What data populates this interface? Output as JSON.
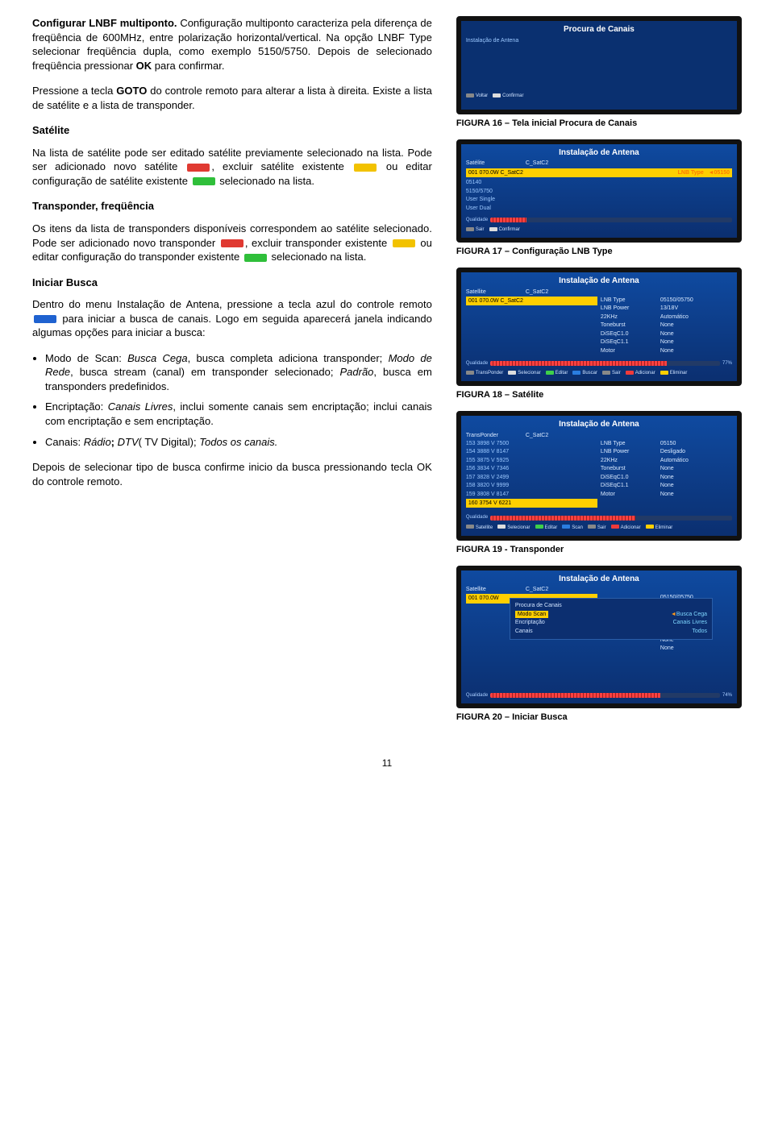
{
  "chips": {
    "red": "#e03a32",
    "yellow": "#f2c200",
    "green": "#2fbf3a",
    "blue": "#1f62d0"
  },
  "left": {
    "s1": {
      "h": "Configurar LNBF multiponto.",
      "p1a": " Configuração multiponto caracteriza pela diferença de freqüência de 600MHz, entre polarização horizontal/vertical. Na opção LNBF Type selecionar freqüência dupla, como exemplo 5150/5750. Depois de selecionado freqüência pressionar ",
      "okword": "OK",
      "p1b": " para confirmar.",
      "p2a": "Pressione a tecla ",
      "goto": "GOTO",
      "p2b": " do controle remoto para alterar a lista à direita. Existe a lista de satélite e a lista de transponder."
    },
    "s2": {
      "h": "Satélite",
      "p_a": "Na lista de satélite pode ser editado satélite previamente selecionado na lista. Pode ser adicionado novo satélite ",
      "p_b": ", excluir satélite existente ",
      "p_c": " ou editar configuração de satélite existente ",
      "p_d": " selecionado na lista."
    },
    "s3": {
      "h": "Transponder, freqüência",
      "p_a": "Os itens da lista de transponders disponíveis correspondem ao satélite selecionado. Pode ser adicionado novo transponder ",
      "p_b": ", excluir transponder existente ",
      "p_c": " ou editar configuração do transponder existente ",
      "p_d": " selecionado na lista."
    },
    "s4": {
      "h": "Iniciar Busca",
      "p1a": "Dentro do menu Instalação de Antena, pressione a tecla azul do controle remoto ",
      "p1b": " para iniciar a busca de canais. Logo em seguida aparecerá janela indicando algumas opções para iniciar a busca:",
      "b1a": "Modo de Scan: ",
      "b1i1": "Busca Cega",
      "b1b": ", busca completa adiciona transponder; ",
      "b1i2": "Modo de Rede",
      "b1c": ", busca stream (canal) em transponder selecionado; ",
      "b1i3": "Padrão",
      "b1d": ", busca em transponders predefinidos.",
      "b2a": "Encriptação: ",
      "b2i1": "Canais Livres",
      "b2b": ", inclui somente canais sem encriptação; inclui canais com encriptação e sem encriptação.",
      "b3a": "Canais: ",
      "b3i1": "Rádio",
      "b3sep1": "; ",
      "b3i2": "DTV",
      "b3paren": "( TV Digital); ",
      "b3i3": "Todos os canais.",
      "p2": "Depois de selecionar tipo de busca confirme inicio da busca pressionando tecla OK do controle remoto."
    }
  },
  "captions": {
    "c16": "FIGURA 16 – Tela inicial Procura de Canais",
    "c17": "FIGURA 17 – Configuração LNB Type",
    "c18": "FIGURA 18 – Satélite",
    "c19": "FIGURA 19 - Transponder",
    "c20": "FIGURA 20 – Iniciar Busca"
  },
  "tv16": {
    "title": "Procura de Canais",
    "sub": "Instalação de Antena",
    "foot_l": "Voltar",
    "foot_r": "Confirmar"
  },
  "tv17": {
    "title": "Instalação de Antena",
    "sat_label": "Satélite",
    "sat_val": "C_SatC2",
    "sel": "001 070.0W C_SatC2",
    "sel_r_label": "LNB Type",
    "sel_r_val": "05150",
    "opts": [
      "05140",
      "5150/5750",
      "User Single",
      "User Dual"
    ],
    "quality_label": "Qualidade",
    "foot": [
      "Sair",
      "Confirmar"
    ]
  },
  "tv18": {
    "title": "Instalação de Antena",
    "sat_label": "Satellite",
    "sat_val": "C_SatC2",
    "sel": "001 070.0W C_SatC2",
    "rows": [
      [
        "LNB Type",
        "05150/05750"
      ],
      [
        "LNB Power",
        "13/18V"
      ],
      [
        "22KHz",
        "Automático"
      ],
      [
        "Toneburst",
        "None"
      ],
      [
        "DiSEqC1.0",
        "None"
      ],
      [
        "DiSEqC1.1",
        "None"
      ],
      [
        "Motor",
        "None"
      ]
    ],
    "quality_label": "Qualidade",
    "quality_pct": "77%",
    "q_fill_pct": 77,
    "foot": [
      "TransPonder",
      "Selecionar",
      "Editar",
      "Buscar",
      "Sair",
      "Adicionar",
      "Eliminar"
    ]
  },
  "tv19": {
    "title": "Instalação de Antena",
    "tp_label": "TransPonder",
    "tp_val": "C_SatC2",
    "list": [
      "153 3898 V 7500",
      "154 3888 V 8147",
      "155 3875 V 5925",
      "156 3834 V 7346",
      "157 3828 V 2499",
      "158 3820 V 9999",
      "159 3808 V 8147"
    ],
    "sel": "160 3754 V 6221",
    "rows": [
      [
        "LNB Type",
        "05150"
      ],
      [
        "LNB Power",
        "Desligado"
      ],
      [
        "22KHz",
        "Automático"
      ],
      [
        "Toneburst",
        "None"
      ],
      [
        "DiSEqC1.0",
        "None"
      ],
      [
        "DiSEqC1.1",
        "None"
      ],
      [
        "Motor",
        "None"
      ]
    ],
    "quality_label": "Qualidade",
    "q_fill_pct": 60,
    "foot": [
      "Satellite",
      "Selecionar",
      "Editar",
      "Scan",
      "Sair",
      "Adicionar",
      "Eliminar"
    ]
  },
  "tv20": {
    "title": "Instalação de Antena",
    "sat_label": "Satellite",
    "sat_val": "C_SatC2",
    "sel": "001 070.0W",
    "rows_right": [
      [
        "",
        "05150/05750"
      ],
      [
        "",
        "13/18V"
      ],
      [
        "",
        "Automático"
      ],
      [
        "",
        "None"
      ],
      [
        "",
        "None"
      ],
      [
        "",
        "None"
      ],
      [
        "",
        "None"
      ]
    ],
    "popup_title": "Procura de Canais",
    "popup_rows": [
      [
        "Modo Scan",
        "Busca Cega"
      ],
      [
        "Encriptação",
        "Canais Livres"
      ],
      [
        "Canais",
        "Todos"
      ]
    ],
    "quality_label": "Qualidade",
    "quality_pct": "74%",
    "q_fill_pct": 74,
    "foot": []
  },
  "page": "11"
}
